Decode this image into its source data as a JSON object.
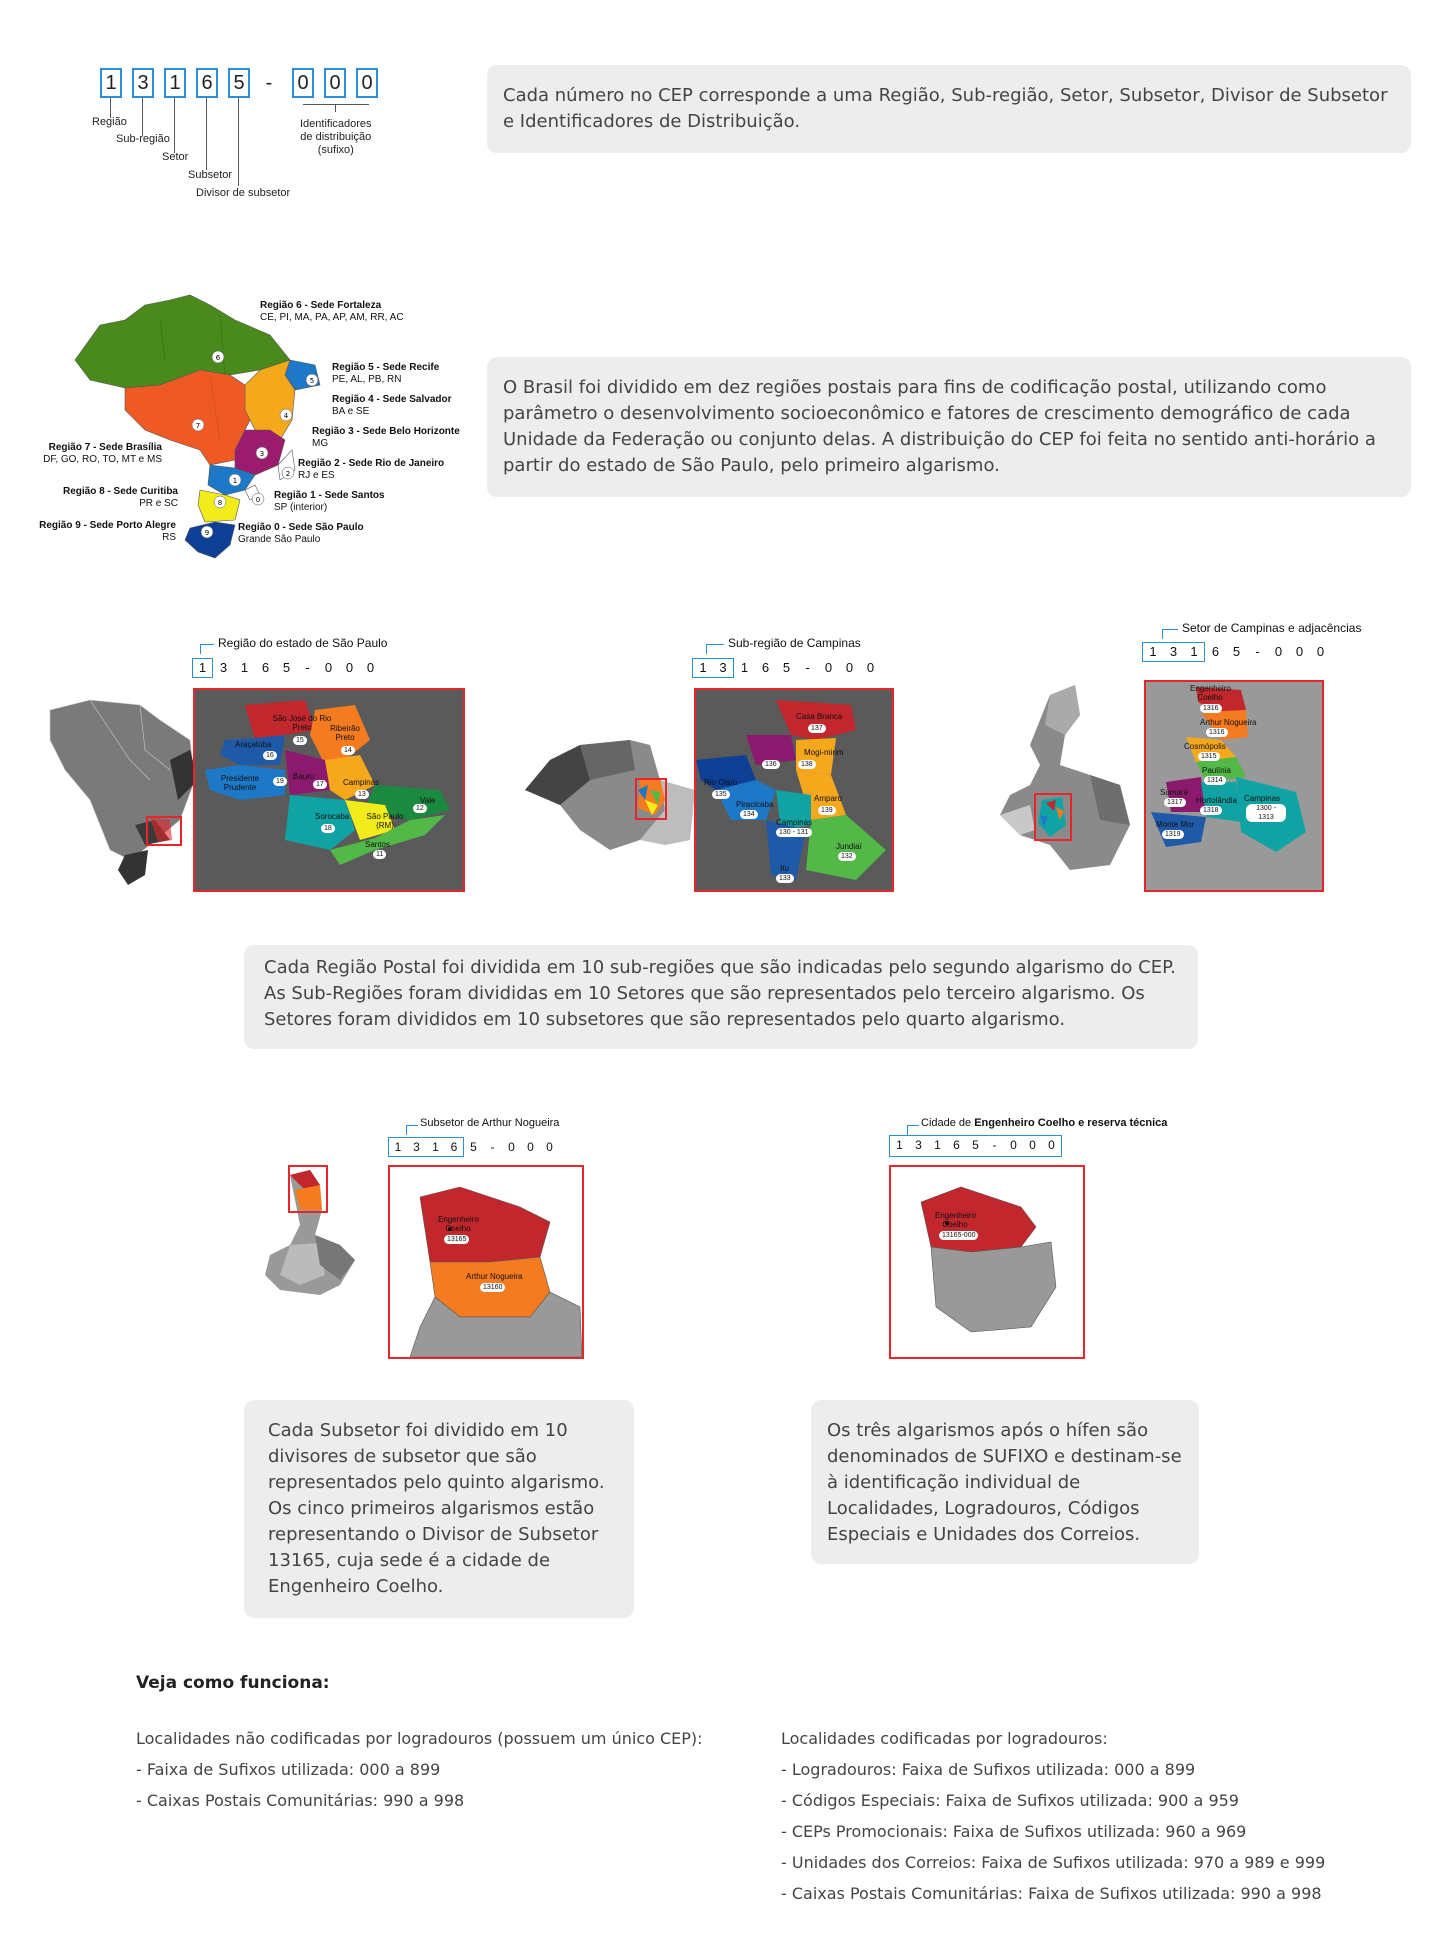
{
  "cep_diagram": {
    "digits": [
      "1",
      "3",
      "1",
      "6",
      "5",
      "-",
      "0",
      "0",
      "0"
    ],
    "labels": {
      "regiao": "Região",
      "sub_regiao": "Sub-região",
      "setor": "Setor",
      "subsetor": "Subsetor",
      "divisor": "Divisor de subsetor",
      "ident_1": "Identificadores",
      "ident_2": "de distribuição",
      "ident_3": "(sufixo)"
    }
  },
  "intro_box": "Cada número no CEP corresponde a uma Região, Sub-região, Setor, Subsetor, Divisor de Subsetor e Identificadores de Distribuição.",
  "brazil_map": {
    "regions": [
      {
        "num": "6",
        "title": "Região 6 - Sede Fortaleza",
        "states": "CE, PI, MA, PA, AP, AM, RR, AC",
        "color": "#4a8a1c"
      },
      {
        "num": "5",
        "title": "Região 5 - Sede Recife",
        "states": "PE, AL, PB, RN",
        "color": "#1e78c8"
      },
      {
        "num": "4",
        "title": "Região 4 - Sede Salvador",
        "states": "BA e SE",
        "color": "#f5a81c"
      },
      {
        "num": "3",
        "title": "Região 3 - Sede Belo Horizonte",
        "states": "MG",
        "color": "#9b1b6e"
      },
      {
        "num": "2",
        "title": "Região 2 - Sede Rio de Janeiro",
        "states": "RJ e ES",
        "color": "#ffffff"
      },
      {
        "num": "1",
        "title": "Região 1 - Sede Santos",
        "states": "SP (interior)",
        "color": "#1e78c8"
      },
      {
        "num": "0",
        "title": "Região 0 - Sede São Paulo",
        "states": "Grande São Paulo",
        "color": "#ffffff"
      },
      {
        "num": "7",
        "title": "Região 7 - Sede Brasília",
        "states": "DF, GO, RO, TO, MT e MS",
        "color": "#ef5a24"
      },
      {
        "num": "8",
        "title": "Região 8 - Sede Curitiba",
        "states": "PR e SC",
        "color": "#f2ec1a"
      },
      {
        "num": "9",
        "title": "Região 9 - Sede Porto Alegre",
        "states": "RS",
        "color": "#0d3f94"
      }
    ]
  },
  "regions_box": "O Brasil foi dividido em dez regiões postais para fins de codificação postal, utilizando como parâmetro o desenvolvimento socioeconômico e fatores de crescimento demográfico de cada Unidade da Federação ou conjunto delas. A distribuição do CEP foi feita no sentido anti-horário a partir do estado de São Paulo, pelo primeiro algarismo.",
  "maps_row1": {
    "sp": {
      "title": "Região do estado de São Paulo",
      "cep": [
        "1",
        "3",
        "1",
        "6",
        "5",
        "-",
        "0",
        "0",
        "0"
      ],
      "areas": [
        {
          "name": "São José do Rio Preto",
          "code": "15"
        },
        {
          "name": "Araçatuba",
          "code": "16"
        },
        {
          "name": "Ribeirão Preto",
          "code": "14"
        },
        {
          "name": "Presidente Prudente",
          "code": "19"
        },
        {
          "name": "Bauru",
          "code": "17"
        },
        {
          "name": "Campinas",
          "code": "13"
        },
        {
          "name": "Vale",
          "code": "12"
        },
        {
          "name": "Sorocaba",
          "code": "18"
        },
        {
          "name": "São Paulo (RM)",
          "code": ""
        },
        {
          "name": "Santos",
          "code": "11"
        }
      ]
    },
    "campinas": {
      "title": "Sub-região de Campinas",
      "cep": [
        "1",
        "3",
        "1",
        "6",
        "5",
        "-",
        "0",
        "0",
        "0"
      ],
      "areas": [
        {
          "name": "Casa Branca",
          "code": "137"
        },
        {
          "name": "Mogi-mirim",
          "code": "138"
        },
        {
          "name": "Rio Claro",
          "code": "135"
        },
        {
          "name": "Piracicaba",
          "code": "134"
        },
        {
          "name": "Amparo",
          "code": "139"
        },
        {
          "name": "Campinas",
          "code": "130 - 131"
        },
        {
          "name": "Jundiaí",
          "code": "132"
        },
        {
          "name": "Itu",
          "code": "133"
        },
        {
          "name": "",
          "code": "136"
        }
      ]
    },
    "setor": {
      "title": "Setor de Campinas e adjacências",
      "cep": [
        "1",
        "3",
        "1",
        "6",
        "5",
        "-",
        "0",
        "0",
        "0"
      ],
      "areas": [
        {
          "name": "Engenheiro Coelho",
          "code": "1316"
        },
        {
          "name": "Arthur Nogueira",
          "code": "1316"
        },
        {
          "name": "Cosmópolis",
          "code": "1315"
        },
        {
          "name": "Paulínia",
          "code": "1314"
        },
        {
          "name": "Sumaré",
          "code": "1317"
        },
        {
          "name": "Hortolândia",
          "code": "1318"
        },
        {
          "name": "Campinas",
          "code": "1300 - 1313"
        },
        {
          "name": "Monte Mor",
          "code": "1319"
        }
      ]
    }
  },
  "subregion_box": "Cada Região Postal foi dividida em 10 sub-regiões que são indicadas pelo segundo algarismo do CEP. As Sub-Regiões foram divididas em 10 Setores que são representados pelo terceiro algarismo. Os Setores foram divididos em 10 subsetores que são representados pelo quarto algarismo.",
  "maps_row2": {
    "subsetor": {
      "title": "Subsetor de Arthur Nogueira",
      "cep": [
        "1",
        "3",
        "1",
        "6",
        "5",
        "-",
        "0",
        "0",
        "0"
      ],
      "areas": [
        {
          "name": "Engenheiro Coelho",
          "code": "13165"
        },
        {
          "name": "Arthur Nogueira",
          "code": "13160"
        }
      ]
    },
    "cidade": {
      "title_pre": "Cidade de ",
      "title_bold": "Engenheiro Coelho e reserva técnica",
      "cep": [
        "1",
        "3",
        "1",
        "6",
        "5",
        "-",
        "0",
        "0",
        "0"
      ],
      "areas": [
        {
          "name": "Engenheiro Coelho",
          "code": "13165-000"
        }
      ]
    }
  },
  "subsetor_box": "Cada Subsetor foi dividido em 10 divisores de subsetor que são representados pelo quinto algarismo. Os cinco primeiros algarismos estão representando o Divisor de Subsetor 13165, cuja sede é a cidade de Engenheiro Coelho.",
  "sufixo_box": "Os três algarismos após o hífen são denominados de SUFIXO e destinam-se à identificação individual de Localidades, Logradouros, Códigos Especiais e Unidades dos Correios.",
  "how": {
    "heading": "Veja como funciona:",
    "left_title": "Localidades não codificadas por logradouros (possuem um único CEP):",
    "left_items": [
      "- Faixa de Sufixos utilizada: 000 a 899",
      "- Caixas Postais Comunitárias: 990 a 998"
    ],
    "right_title": "Localidades codificadas por logradouros:",
    "right_items": [
      "- Logradouros: Faixa de Sufixos utilizada: 000 a 899",
      "- Códigos Especiais: Faixa de Sufixos utilizada: 900 a 959",
      "- CEPs Promocionais: Faixa de Sufixos utilizada: 960 a 969",
      "- Unidades dos Correios: Faixa de Sufixos utilizada: 970 a 989 e 999",
      "- Caixas Postais Comunitárias: Faixa de Sufixos utilizada: 990 a 998"
    ]
  }
}
